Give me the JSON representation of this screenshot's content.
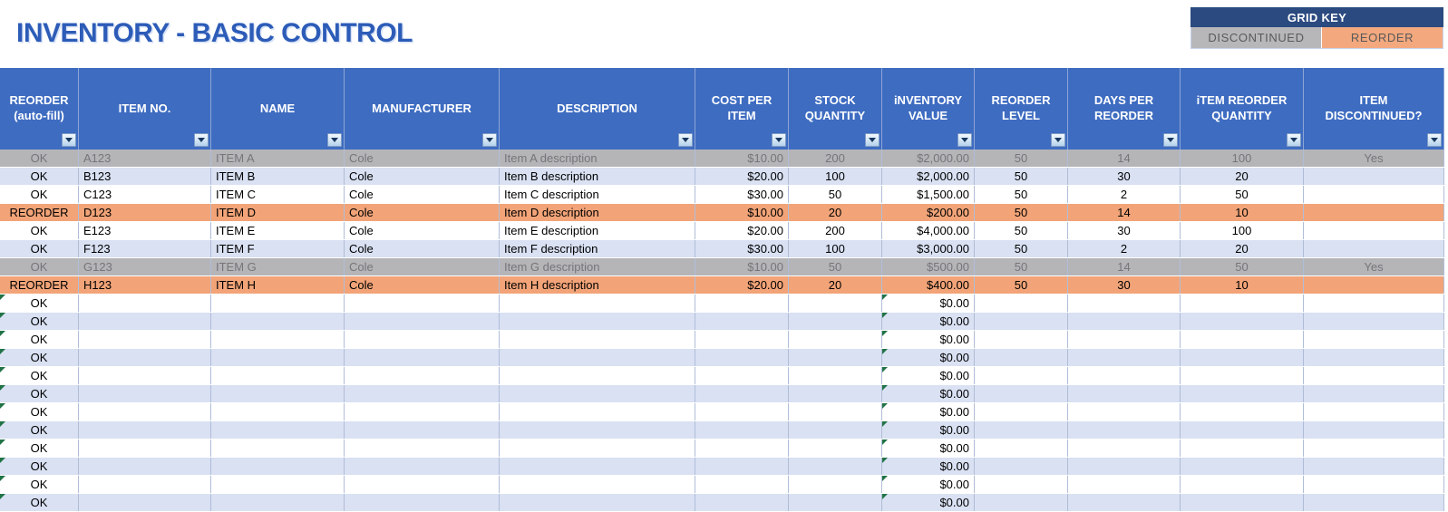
{
  "title": "INVENTORY - BASIC CONTROL",
  "grid_key": {
    "title": "GRID KEY",
    "discontinued_label": "DISCONTINUED",
    "reorder_label": "REORDER"
  },
  "colors": {
    "title_blue": "#2d5cb8",
    "header_blue": "#3e6cc1",
    "key_navy": "#2b4a80",
    "discontinued_gray": "#b5b5b8",
    "reorder_orange": "#f2a478",
    "band_blue": "#d9e1f3",
    "flag_green": "#217346"
  },
  "table": {
    "columns": [
      {
        "label": "REORDER\n(auto-fill)"
      },
      {
        "label": "ITEM NO."
      },
      {
        "label": "NAME"
      },
      {
        "label": "MANUFACTURER"
      },
      {
        "label": "DESCRIPTION"
      },
      {
        "label": "COST PER\nITEM"
      },
      {
        "label": "STOCK\nQUANTITY"
      },
      {
        "label": "iNVENTORY\nVALUE"
      },
      {
        "label": "REORDER\nLEVEL"
      },
      {
        "label": "DAYS PER\nREORDER"
      },
      {
        "label": "iTEM REORDER\nQUANTITY"
      },
      {
        "label": "ITEM\nDISCONTINUED?"
      }
    ],
    "rows": [
      {
        "status": "OK",
        "item_no": "A123",
        "name": "ITEM A",
        "manufacturer": "Cole",
        "description": "Item A description",
        "cost": "$10.00",
        "stock": "200",
        "value": "$2,000.00",
        "reorder_level": "50",
        "days_per_reorder": "14",
        "reorder_qty": "100",
        "discontinued": "Yes",
        "style": "discontinued"
      },
      {
        "status": "OK",
        "item_no": "B123",
        "name": "ITEM B",
        "manufacturer": "Cole",
        "description": "Item B description",
        "cost": "$20.00",
        "stock": "100",
        "value": "$2,000.00",
        "reorder_level": "50",
        "days_per_reorder": "30",
        "reorder_qty": "20",
        "discontinued": "",
        "style": "band"
      },
      {
        "status": "OK",
        "item_no": "C123",
        "name": "ITEM C",
        "manufacturer": "Cole",
        "description": "Item C description",
        "cost": "$30.00",
        "stock": "50",
        "value": "$1,500.00",
        "reorder_level": "50",
        "days_per_reorder": "2",
        "reorder_qty": "50",
        "discontinued": "",
        "style": "white"
      },
      {
        "status": "REORDER",
        "item_no": "D123",
        "name": "ITEM D",
        "manufacturer": "Cole",
        "description": "Item D description",
        "cost": "$10.00",
        "stock": "20",
        "value": "$200.00",
        "reorder_level": "50",
        "days_per_reorder": "14",
        "reorder_qty": "10",
        "discontinued": "",
        "style": "reorder"
      },
      {
        "status": "OK",
        "item_no": "E123",
        "name": "ITEM E",
        "manufacturer": "Cole",
        "description": "Item E description",
        "cost": "$20.00",
        "stock": "200",
        "value": "$4,000.00",
        "reorder_level": "50",
        "days_per_reorder": "30",
        "reorder_qty": "100",
        "discontinued": "",
        "style": "white"
      },
      {
        "status": "OK",
        "item_no": "F123",
        "name": "ITEM F",
        "manufacturer": "Cole",
        "description": "Item F description",
        "cost": "$30.00",
        "stock": "100",
        "value": "$3,000.00",
        "reorder_level": "50",
        "days_per_reorder": "2",
        "reorder_qty": "20",
        "discontinued": "",
        "style": "band"
      },
      {
        "status": "OK",
        "item_no": "G123",
        "name": "ITEM G",
        "manufacturer": "Cole",
        "description": "Item G description",
        "cost": "$10.00",
        "stock": "50",
        "value": "$500.00",
        "reorder_level": "50",
        "days_per_reorder": "14",
        "reorder_qty": "50",
        "discontinued": "Yes",
        "style": "discontinued"
      },
      {
        "status": "REORDER",
        "item_no": "H123",
        "name": "ITEM H",
        "manufacturer": "Cole",
        "description": "Item H description",
        "cost": "$20.00",
        "stock": "20",
        "value": "$400.00",
        "reorder_level": "50",
        "days_per_reorder": "30",
        "reorder_qty": "10",
        "discontinued": "",
        "style": "reorder"
      }
    ],
    "empty_rows": {
      "count": 12,
      "status": "OK",
      "value": "$0.00"
    }
  }
}
